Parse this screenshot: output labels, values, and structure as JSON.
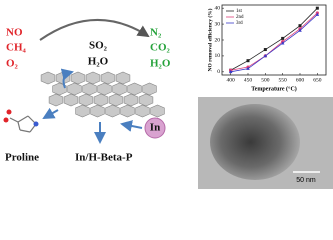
{
  "diagram": {
    "reactants": [
      "NO",
      "CH₄",
      "O₂"
    ],
    "poisons": [
      "SO₂",
      "H₂O"
    ],
    "products": [
      "N₂",
      "CO₂",
      "H₂O"
    ],
    "ligand": "Proline",
    "catalyst": "In/H-Beta-P",
    "metal": "In"
  },
  "chart_data": {
    "type": "line",
    "x_label": "Temperature (°C)",
    "y_label": "NO removal efficiency (%)",
    "x": [
      400,
      450,
      500,
      550,
      600,
      650
    ],
    "series": [
      {
        "name": "1st",
        "color": "#222222",
        "marker": "square",
        "values": [
          1,
          7,
          14,
          21,
          29,
          40
        ]
      },
      {
        "name": "2nd",
        "color": "#e0407a",
        "marker": "circle",
        "values": [
          1,
          3,
          10,
          19,
          27,
          37
        ]
      },
      {
        "name": "3rd",
        "color": "#3a3ac8",
        "marker": "triangle",
        "values": [
          0,
          2,
          10,
          18,
          26,
          36
        ]
      }
    ],
    "xlim": [
      375,
      675
    ],
    "xticks": [
      400,
      450,
      500,
      550,
      600,
      650
    ],
    "ylim": [
      -2,
      42
    ],
    "yticks": [
      0,
      10,
      20,
      30,
      40
    ],
    "legend": "upper left"
  },
  "image": {
    "scale_bar": "50 nm"
  }
}
